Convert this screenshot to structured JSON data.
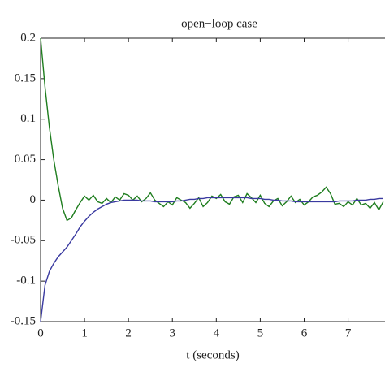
{
  "chart_data": {
    "type": "line",
    "title": "open−loop case",
    "xlabel": "t (seconds)",
    "x": [
      0,
      0.1,
      0.2,
      0.3,
      0.4,
      0.5,
      0.6,
      0.7,
      0.8,
      0.9,
      1.0,
      1.1,
      1.2,
      1.3,
      1.4,
      1.5,
      1.6,
      1.7,
      1.8,
      1.9,
      2.0,
      2.1,
      2.2,
      2.3,
      2.4,
      2.5,
      2.6,
      2.7,
      2.8,
      2.9,
      3.0,
      3.1,
      3.2,
      3.3,
      3.4,
      3.5,
      3.6,
      3.7,
      3.8,
      3.9,
      4.0,
      4.1,
      4.2,
      4.3,
      4.4,
      4.5,
      4.6,
      4.7,
      4.8,
      4.9,
      5.0,
      5.1,
      5.2,
      5.3,
      5.4,
      5.5,
      5.6,
      5.7,
      5.8,
      5.9,
      6.0,
      6.1,
      6.2,
      6.3,
      6.4,
      6.5,
      6.6,
      6.7,
      6.8,
      6.9,
      7.0,
      7.1,
      7.2,
      7.3,
      7.4,
      7.5,
      7.6,
      7.7,
      7.8
    ],
    "series": [
      {
        "name": "green",
        "color": "#1e7d1e",
        "values": [
          0.2,
          0.14,
          0.09,
          0.05,
          0.018,
          -0.01,
          -0.025,
          -0.022,
          -0.012,
          -0.003,
          0.005,
          0.0,
          0.006,
          -0.002,
          -0.004,
          0.002,
          -0.003,
          0.004,
          0.0,
          0.008,
          0.006,
          0.0,
          0.005,
          -0.002,
          0.002,
          0.009,
          0.0,
          -0.004,
          -0.008,
          -0.002,
          -0.006,
          0.003,
          0.0,
          -0.003,
          -0.01,
          -0.004,
          0.003,
          -0.008,
          -0.003,
          0.005,
          0.002,
          0.007,
          -0.002,
          -0.005,
          0.004,
          0.006,
          -0.003,
          0.008,
          0.003,
          -0.003,
          0.006,
          -0.004,
          -0.008,
          -0.001,
          0.002,
          -0.007,
          -0.002,
          0.005,
          -0.003,
          0.001,
          -0.006,
          -0.002,
          0.004,
          0.006,
          0.01,
          0.016,
          0.008,
          -0.005,
          -0.004,
          -0.008,
          -0.002,
          -0.006,
          0.002,
          -0.006,
          -0.004,
          -0.01,
          -0.003,
          -0.012,
          -0.002
        ]
      },
      {
        "name": "blue",
        "color": "#3a3aa0",
        "values": [
          -0.15,
          -0.105,
          -0.088,
          -0.078,
          -0.07,
          -0.064,
          -0.058,
          -0.05,
          -0.042,
          -0.033,
          -0.026,
          -0.02,
          -0.015,
          -0.011,
          -0.008,
          -0.005,
          -0.003,
          -0.002,
          -0.001,
          0.0,
          0.0,
          0.0,
          0.0,
          -0.001,
          -0.001,
          -0.001,
          -0.002,
          -0.002,
          -0.002,
          -0.002,
          -0.002,
          -0.001,
          -0.001,
          0,
          0.001,
          0.001,
          0.002,
          0.002,
          0.003,
          0.003,
          0.003,
          0.003,
          0.003,
          0.003,
          0.003,
          0.003,
          0.003,
          0.003,
          0.002,
          0.002,
          0.002,
          0.001,
          0.001,
          0,
          0,
          -0.001,
          -0.001,
          -0.001,
          -0.002,
          -0.002,
          -0.002,
          -0.002,
          -0.002,
          -0.002,
          -0.002,
          -0.002,
          -0.002,
          -0.002,
          -0.001,
          -0.001,
          -0.001,
          -0.001,
          0,
          0,
          0,
          0.001,
          0.001,
          0.002,
          0.002
        ]
      }
    ],
    "xlim": [
      0,
      7.84
    ],
    "ylim": [
      -0.15,
      0.2
    ],
    "xticks": [
      0,
      1,
      2,
      3,
      4,
      5,
      6,
      7
    ],
    "yticks": [
      -0.15,
      -0.1,
      -0.05,
      0,
      0.05,
      0.1,
      0.15,
      0.2
    ]
  }
}
